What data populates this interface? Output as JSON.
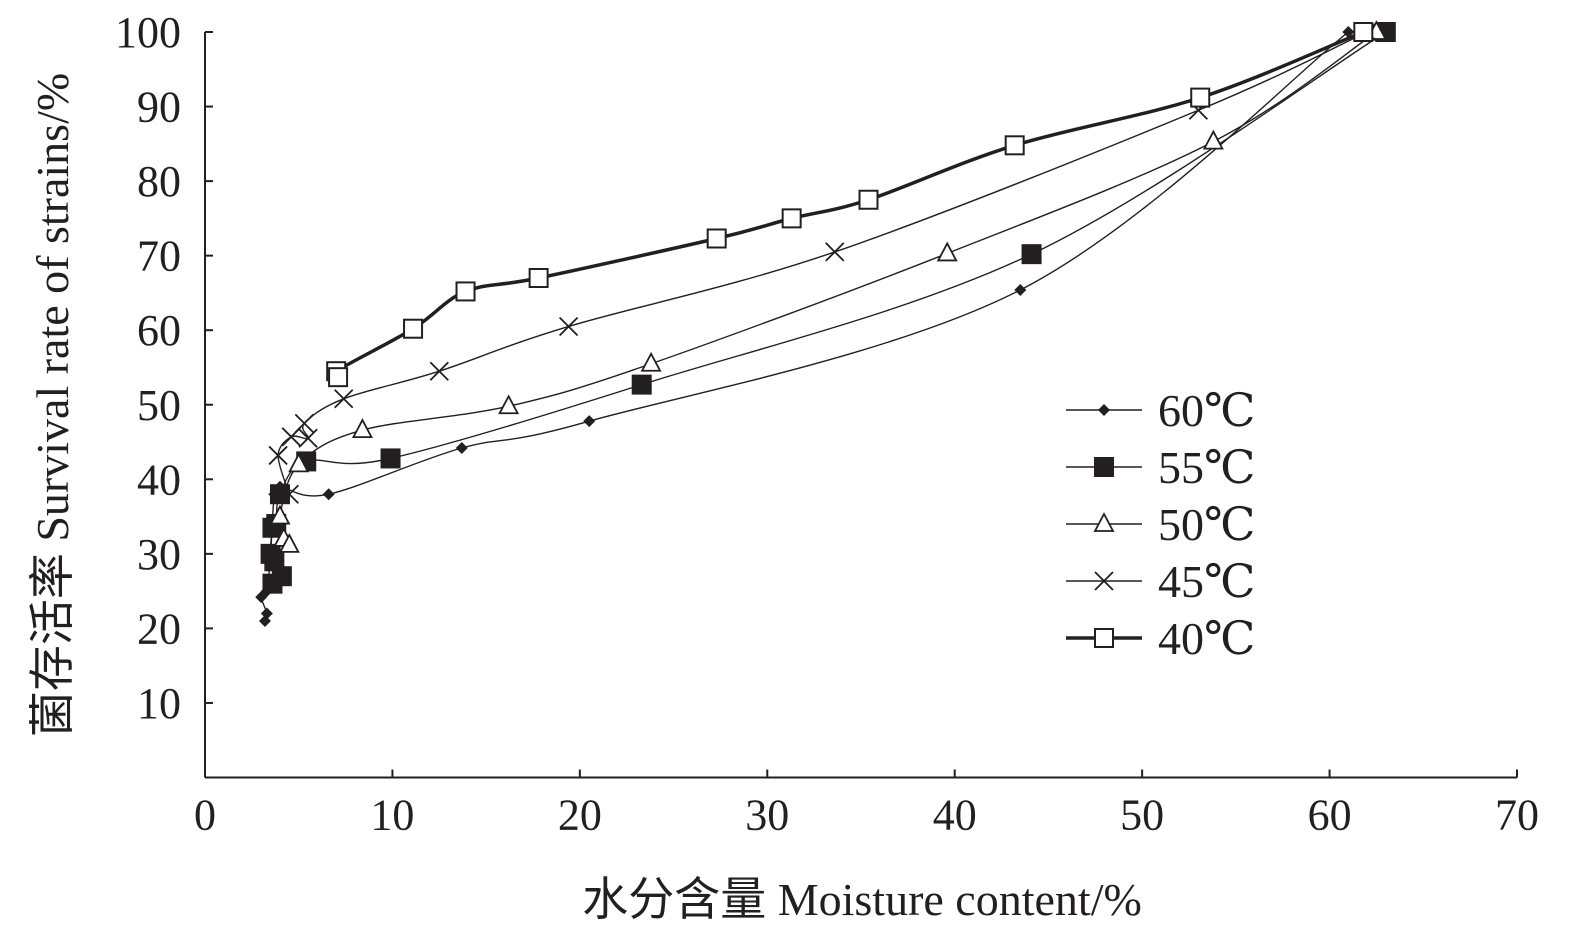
{
  "chart_data": {
    "type": "line",
    "title": "",
    "xlabel": "水分含量 Moisture content/%",
    "ylabel": "菌存活率 Survival rate of strains/%",
    "xlim": [
      0,
      70
    ],
    "ylim": [
      0,
      100
    ],
    "xticks": [
      "0",
      "10",
      "20",
      "30",
      "40",
      "50",
      "60",
      "70"
    ],
    "yticks": [
      "10",
      "20",
      "30",
      "40",
      "50",
      "60",
      "70",
      "80",
      "90",
      "100"
    ],
    "grid": false,
    "legend_position": "right",
    "series": [
      {
        "name": "60℃",
        "marker": "diamond",
        "color": "#231f20",
        "points": [
          [
            61,
            100
          ],
          [
            43.5,
            65.4
          ],
          [
            20.5,
            47.8
          ],
          [
            13.7,
            44.2
          ],
          [
            6.6,
            38
          ],
          [
            4.0,
            39
          ],
          [
            3.7,
            38
          ],
          [
            3.5,
            30
          ],
          [
            3.3,
            25
          ],
          [
            3.0,
            24.2
          ],
          [
            3.3,
            22
          ],
          [
            3.2,
            21
          ]
        ]
      },
      {
        "name": "55℃",
        "marker": "filled-square",
        "color": "#231f20",
        "points": [
          [
            63,
            100
          ],
          [
            44.1,
            70.2
          ],
          [
            23.3,
            52.7
          ],
          [
            9.9,
            42.8
          ],
          [
            5.4,
            42.4
          ],
          [
            4.0,
            38
          ],
          [
            3.8,
            34
          ],
          [
            3.6,
            33.5
          ],
          [
            3.5,
            30
          ],
          [
            3.7,
            29
          ],
          [
            4.1,
            27
          ],
          [
            3.6,
            26
          ]
        ]
      },
      {
        "name": "50℃",
        "marker": "open-triangle",
        "color": "#231f20",
        "points": [
          [
            62.5,
            100
          ],
          [
            53.8,
            85.3
          ],
          [
            39.6,
            70.3
          ],
          [
            23.8,
            55.5
          ],
          [
            16.2,
            49.8
          ],
          [
            8.4,
            46.6
          ],
          [
            5.0,
            42
          ],
          [
            4.0,
            35
          ],
          [
            4.2,
            32
          ],
          [
            4.5,
            31.2
          ]
        ]
      },
      {
        "name": "45℃",
        "marker": "cross",
        "color": "#231f20",
        "points": [
          [
            62,
            100
          ],
          [
            53,
            89.5
          ],
          [
            33.6,
            70.5
          ],
          [
            19.4,
            60.5
          ],
          [
            12.5,
            54.5
          ],
          [
            7.4,
            50.8
          ],
          [
            5.3,
            47.5
          ],
          [
            5.5,
            45.5
          ],
          [
            4.6,
            45.7
          ],
          [
            3.9,
            43.2
          ],
          [
            4.5,
            38
          ]
        ]
      },
      {
        "name": "40℃",
        "marker": "open-square",
        "color": "#231f20",
        "points": [
          [
            61.8,
            100
          ],
          [
            53.1,
            91.2
          ],
          [
            43.2,
            84.8
          ],
          [
            35.4,
            77.5
          ],
          [
            31.3,
            75
          ],
          [
            27.3,
            72.3
          ],
          [
            17.8,
            67
          ],
          [
            13.9,
            65.2
          ],
          [
            11.1,
            60.2
          ],
          [
            7.0,
            54.5
          ],
          [
            7.1,
            53.7
          ]
        ]
      }
    ]
  }
}
